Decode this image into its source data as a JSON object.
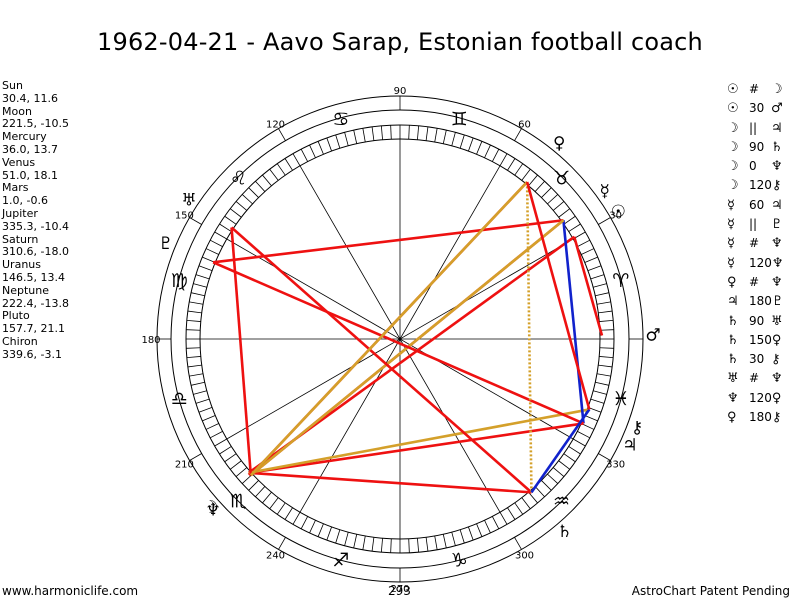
{
  "title": "1962-04-21 - Aavo Sarap, Estonian football coach",
  "planets": [
    {
      "name": "Sun",
      "position": "30.4, 11.6",
      "glyph": "☉",
      "lon": 30.4,
      "lat": 11.6
    },
    {
      "name": "Moon",
      "position": "221.5, -10.5",
      "glyph": "☽",
      "lon": 221.5,
      "lat": -10.5
    },
    {
      "name": "Mercury",
      "position": "36.0, 13.7",
      "glyph": "☿",
      "lon": 36.0,
      "lat": 13.7
    },
    {
      "name": "Venus",
      "position": "51.0, 18.1",
      "glyph": "♀",
      "lon": 51.0,
      "lat": 18.1
    },
    {
      "name": "Mars",
      "position": "1.0, -0.6",
      "glyph": "♂",
      "lon": 1.0,
      "lat": -0.6
    },
    {
      "name": "Jupiter",
      "position": "335.3, -10.4",
      "glyph": "♃",
      "lon": 335.3,
      "lat": -10.4
    },
    {
      "name": "Saturn",
      "position": "310.6, -18.0",
      "glyph": "♄",
      "lon": 310.6,
      "lat": -18.0
    },
    {
      "name": "Uranus",
      "position": "146.5, 13.4",
      "glyph": "♅",
      "lon": 146.5,
      "lat": 13.4
    },
    {
      "name": "Neptune",
      "position": "222.4, -13.8",
      "glyph": "♆",
      "lon": 222.4,
      "lat": -13.8
    },
    {
      "name": "Pluto",
      "position": "157.7, 21.1",
      "glyph": "♇",
      "lon": 157.7,
      "lat": 21.1
    },
    {
      "name": "Chiron",
      "position": "339.6, -3.1",
      "glyph": "⚷",
      "lon": 339.6,
      "lat": -3.1
    }
  ],
  "aspects": [
    {
      "p1": "☉",
      "symbol": "#",
      "p2": "☽",
      "color": "red"
    },
    {
      "p1": "☉",
      "symbol": "30",
      "p2": "♂",
      "color": "red"
    },
    {
      "p1": "☽",
      "symbol": "||",
      "p2": "♃",
      "color": "red"
    },
    {
      "p1": "☽",
      "symbol": "90",
      "p2": "♄",
      "color": "red"
    },
    {
      "p1": "☽",
      "symbol": "0",
      "p2": "♆",
      "color": "red"
    },
    {
      "p1": "☽",
      "symbol": "120",
      "p2": "⚷",
      "color": "gold"
    },
    {
      "p1": "☿",
      "symbol": "60",
      "p2": "♃",
      "color": "blue"
    },
    {
      "p1": "☿",
      "symbol": "||",
      "p2": "♇",
      "color": "red"
    },
    {
      "p1": "☿",
      "symbol": "#",
      "p2": "♆",
      "color": "red"
    },
    {
      "p1": "☿",
      "symbol": "120",
      "p2": "♆",
      "color": "gold"
    },
    {
      "p1": "♀",
      "symbol": "#",
      "p2": "♆",
      "color": "red"
    },
    {
      "p1": "♃",
      "symbol": "180",
      "p2": "♇",
      "color": "red"
    },
    {
      "p1": "♄",
      "symbol": "90",
      "p2": "♅",
      "color": "red"
    },
    {
      "p1": "♄",
      "symbol": "150",
      "p2": "♀",
      "color": "gold"
    },
    {
      "p1": "♄",
      "symbol": "30",
      "p2": "⚷",
      "color": "blue"
    },
    {
      "p1": "♅",
      "symbol": "#",
      "p2": "♆",
      "color": "red"
    },
    {
      "p1": "♆",
      "symbol": "120",
      "p2": "♀",
      "color": "gold"
    },
    {
      "p1": "♀",
      "symbol": "180",
      "p2": "⚷",
      "color": "red"
    }
  ],
  "degree_labels": [
    "90",
    "60",
    "30",
    "120",
    "150",
    "180",
    "210",
    "240",
    "270",
    "300",
    "330"
  ],
  "signs": [
    {
      "name": "aries",
      "glyph": "♈"
    },
    {
      "name": "taurus",
      "glyph": "♉"
    },
    {
      "name": "gemini",
      "glyph": "♊"
    },
    {
      "name": "cancer",
      "glyph": "♋"
    },
    {
      "name": "leo",
      "glyph": "♌"
    },
    {
      "name": "virgo",
      "glyph": "♍"
    },
    {
      "name": "libra",
      "glyph": "♎"
    },
    {
      "name": "scorpio",
      "glyph": "♏"
    },
    {
      "name": "sagittarius",
      "glyph": "♐"
    },
    {
      "name": "capricorn",
      "glyph": "♑"
    },
    {
      "name": "aquarius",
      "glyph": "♒"
    },
    {
      "name": "pisces",
      "glyph": "♓"
    }
  ],
  "colors": {
    "red": "#ee1111",
    "gold": "#d4a02a",
    "blue": "#1122cc",
    "dotted_red": "#dd1111",
    "dotted_gold": "#d4a02a"
  },
  "footer": {
    "left": "www.harmoniclife.com",
    "middle": "293",
    "right": "AstroChart Patent Pending"
  }
}
